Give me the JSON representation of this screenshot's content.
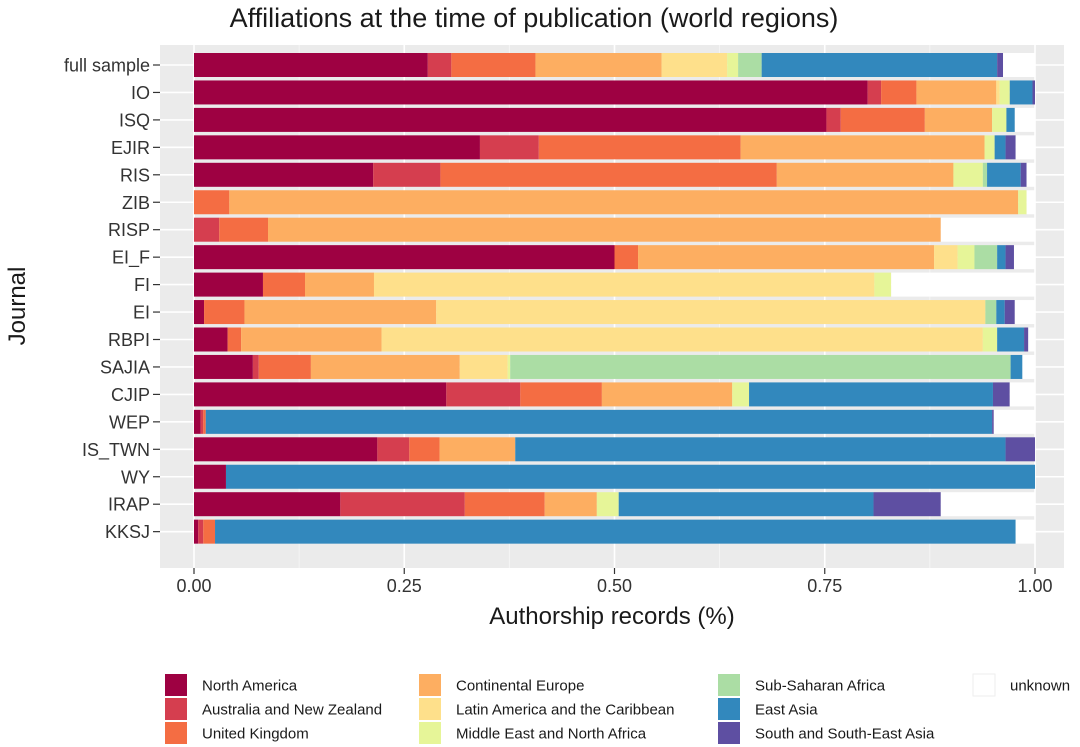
{
  "chart_data": {
    "type": "bar",
    "orientation": "horizontal",
    "stacked": true,
    "title": "Affiliations at the time of publication (world regions)",
    "xlabel": "Authorship records (%)",
    "ylabel": "Journal",
    "xlim": [
      0,
      1
    ],
    "xticks": [
      "0.00",
      "0.25",
      "0.50",
      "0.75",
      "1.00"
    ],
    "xtick_values": [
      0,
      0.25,
      0.5,
      0.75,
      1.0
    ],
    "grid": true,
    "legend_position": "bottom",
    "categories": [
      "full sample",
      "IO",
      "ISQ",
      "EJIR",
      "RIS",
      "ZIB",
      "RISP",
      "EI_F",
      "FI",
      "EI",
      "RBPI",
      "SAJIA",
      "CJIP",
      "WEP",
      "IS_TWN",
      "WY",
      "IRAP",
      "KKSJ"
    ],
    "series": [
      {
        "name": "North America",
        "color": "#9e0142",
        "values": [
          0.278,
          0.801,
          0.752,
          0.34,
          0.213,
          0,
          0,
          0.5,
          0.082,
          0.012,
          0.04,
          0.07,
          0.3,
          0.008,
          0.218,
          0.038,
          0.174,
          0.005
        ]
      },
      {
        "name": "Australia and New Zealand",
        "color": "#d53e4f",
        "values": [
          0.028,
          0.016,
          0.017,
          0.07,
          0.08,
          0,
          0.03,
          0,
          0,
          0,
          0,
          0.007,
          0.088,
          0.003,
          0.038,
          0,
          0.148,
          0.006
        ]
      },
      {
        "name": "United Kingdom",
        "color": "#f46d43",
        "values": [
          0.1,
          0.042,
          0.1,
          0.24,
          0.4,
          0.042,
          0.058,
          0.028,
          0.05,
          0.048,
          0.016,
          0.062,
          0.097,
          0.003,
          0.036,
          0,
          0.095,
          0.014
        ]
      },
      {
        "name": "Continental Europe",
        "color": "#fdae61",
        "values": [
          0.15,
          0.095,
          0.08,
          0.29,
          0.21,
          0.938,
          0.8,
          0.352,
          0.082,
          0.228,
          0.167,
          0.177,
          0.155,
          0,
          0.09,
          0,
          0.062,
          0
        ]
      },
      {
        "name": "Latin America and the Caribbean",
        "color": "#fee08b",
        "values": [
          0.078,
          0.004,
          0,
          0,
          0,
          0,
          0,
          0.028,
          0.595,
          0.653,
          0.715,
          0.057,
          0,
          0,
          0,
          0,
          0,
          0
        ]
      },
      {
        "name": "Middle East and North Africa",
        "color": "#e6f598",
        "values": [
          0.013,
          0.012,
          0.017,
          0.012,
          0.035,
          0.01,
          0,
          0.02,
          0.02,
          0,
          0.017,
          0.003,
          0.02,
          0,
          0,
          0,
          0.026,
          0
        ]
      },
      {
        "name": "Sub-Saharan Africa",
        "color": "#abdda4",
        "values": [
          0.028,
          0,
          0,
          0,
          0.005,
          0,
          0,
          0.027,
          0,
          0.013,
          0,
          0.595,
          0,
          0,
          0,
          0,
          0,
          0
        ]
      },
      {
        "name": "East Asia",
        "color": "#3288bd",
        "values": [
          0.28,
          0.027,
          0.01,
          0.013,
          0.04,
          0,
          0,
          0.01,
          0,
          0.01,
          0.032,
          0.014,
          0.29,
          0.935,
          0.583,
          0.962,
          0.303,
          0.952
        ]
      },
      {
        "name": "South and South-East Asia",
        "color": "#5e4fa2",
        "values": [
          0.007,
          0.003,
          0,
          0.012,
          0.007,
          0,
          0,
          0.01,
          0,
          0.012,
          0.005,
          0,
          0.02,
          0.002,
          0.035,
          0,
          0.08,
          0
        ]
      },
      {
        "name": "unknown",
        "color": "#ffffff",
        "values": [
          0.038,
          0,
          0.024,
          0.023,
          0.01,
          0.01,
          0.112,
          0.025,
          0.171,
          0.024,
          0.008,
          0.015,
          0.03,
          0.049,
          0,
          0,
          0.112,
          0.023
        ]
      }
    ]
  }
}
